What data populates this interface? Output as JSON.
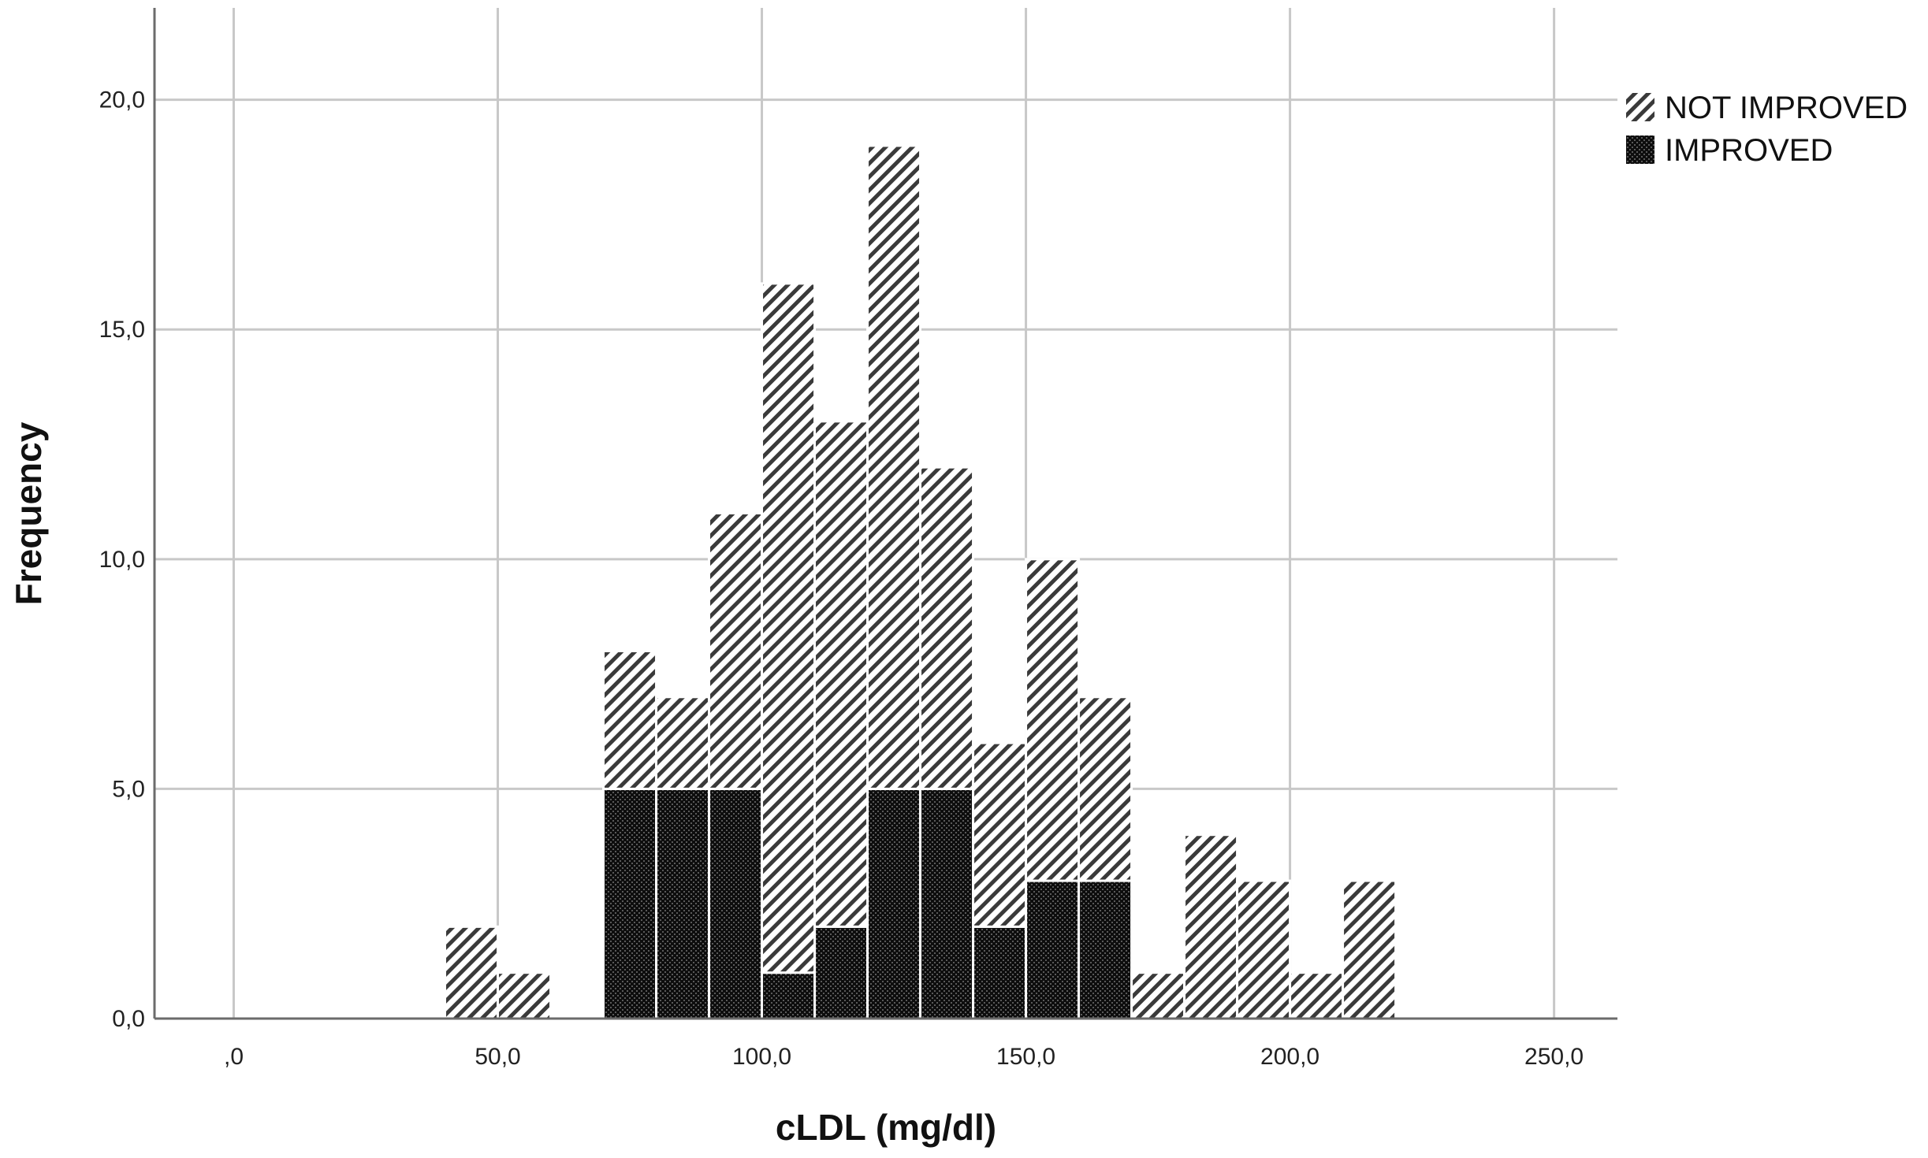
{
  "chart_data": {
    "type": "bar",
    "stacked": true,
    "xlabel": "cLDL (mg/dl)",
    "ylabel": "Frequency",
    "xlim": [
      -15,
      262
    ],
    "ylim": [
      0,
      22
    ],
    "grid": true,
    "legend_position": "top-right",
    "x_ticks": [
      {
        "value": 0,
        "label": ",0"
      },
      {
        "value": 50,
        "label": "50,0"
      },
      {
        "value": 100,
        "label": "100,0"
      },
      {
        "value": 150,
        "label": "150,0"
      },
      {
        "value": 200,
        "label": "200,0"
      },
      {
        "value": 250,
        "label": "250,0"
      }
    ],
    "y_ticks": [
      {
        "value": 0,
        "label": "0,0"
      },
      {
        "value": 5,
        "label": "5,0"
      },
      {
        "value": 10,
        "label": "10,0"
      },
      {
        "value": 15,
        "label": "15,0"
      },
      {
        "value": 20,
        "label": "20,0"
      }
    ],
    "bin_width": 10,
    "bins": [
      40,
      50,
      60,
      70,
      80,
      90,
      100,
      110,
      120,
      130,
      140,
      150,
      160,
      170,
      180,
      190,
      200,
      210
    ],
    "series": [
      {
        "name": "IMPROVED",
        "pattern": "crosshatch",
        "color": "#111111",
        "values": [
          0,
          0,
          0,
          5,
          5,
          5,
          1,
          2,
          5,
          5,
          2,
          3,
          3,
          0,
          0,
          0,
          0,
          0
        ]
      },
      {
        "name": "NOT IMPROVED",
        "pattern": "diagonal-hatch",
        "color": "#555555",
        "values": [
          2,
          1,
          0,
          3,
          2,
          6,
          15,
          11,
          14,
          7,
          4,
          7,
          4,
          1,
          4,
          3,
          1,
          3
        ]
      }
    ],
    "legend": [
      {
        "name": "NOT IMPROVED",
        "pattern": "diagonal-hatch"
      },
      {
        "name": "IMPROVED",
        "pattern": "crosshatch"
      }
    ]
  }
}
